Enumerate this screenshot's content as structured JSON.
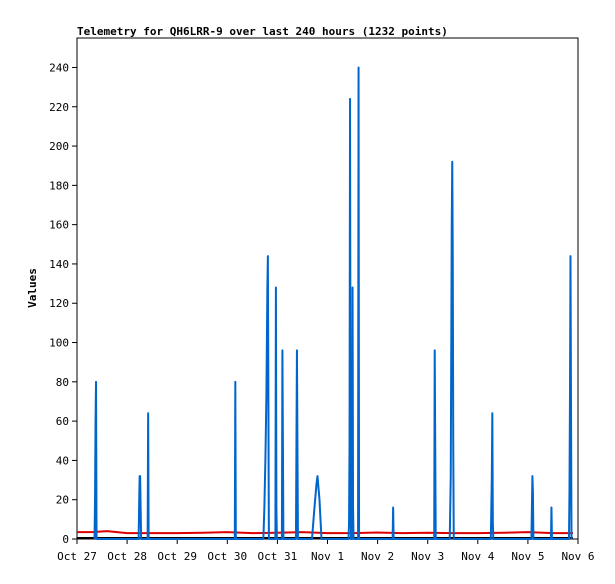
{
  "chart_data": {
    "type": "line",
    "title": "Telemetry for QH6LRR-9 over last 240 hours (1232 points)",
    "xlabel": "",
    "ylabel": "Values",
    "xlim": [
      "Oct 27",
      "Nov 6"
    ],
    "ylim": [
      0,
      255
    ],
    "x_ticks": [
      "Oct 27",
      "Oct 28",
      "Oct 29",
      "Oct 30",
      "Oct 31",
      "Nov 1",
      "Nov 2",
      "Nov 3",
      "Nov 4",
      "Nov 5",
      "Nov 6"
    ],
    "y_ticks": [
      0,
      20,
      40,
      60,
      80,
      100,
      120,
      140,
      160,
      180,
      200,
      220,
      240
    ],
    "grid": false,
    "legend": "none",
    "x_unit": "days since Oct 27 00:00",
    "series": [
      {
        "color": "#0066cc",
        "points": [
          [
            0.35,
            0
          ],
          [
            0.36,
            20
          ],
          [
            0.37,
            60
          ],
          [
            0.38,
            80
          ],
          [
            0.39,
            0
          ],
          [
            1.23,
            0
          ],
          [
            1.24,
            16
          ],
          [
            1.25,
            32
          ],
          [
            1.26,
            32
          ],
          [
            1.27,
            16
          ],
          [
            1.28,
            0
          ],
          [
            1.41,
            0
          ],
          [
            1.42,
            64
          ],
          [
            1.43,
            0
          ],
          [
            3.15,
            0
          ],
          [
            3.16,
            80
          ],
          [
            3.17,
            0
          ],
          [
            3.72,
            0
          ],
          [
            3.74,
            16
          ],
          [
            3.76,
            40
          ],
          [
            3.78,
            72
          ],
          [
            3.79,
            100
          ],
          [
            3.8,
            128
          ],
          [
            3.81,
            144
          ],
          [
            3.82,
            72
          ],
          [
            3.83,
            0
          ],
          [
            3.96,
            0
          ],
          [
            3.97,
            128
          ],
          [
            3.98,
            16
          ],
          [
            3.99,
            0
          ],
          [
            4.09,
            0
          ],
          [
            4.1,
            96
          ],
          [
            4.11,
            48
          ],
          [
            4.12,
            0
          ],
          [
            4.37,
            0
          ],
          [
            4.38,
            48
          ],
          [
            4.39,
            96
          ],
          [
            4.4,
            48
          ],
          [
            4.41,
            0
          ],
          [
            4.69,
            0
          ],
          [
            4.74,
            16
          ],
          [
            4.78,
            28
          ],
          [
            4.8,
            32
          ],
          [
            4.84,
            20
          ],
          [
            4.88,
            0
          ],
          [
            5.42,
            0
          ],
          [
            5.43,
            8
          ],
          [
            5.44,
            48
          ],
          [
            5.45,
            224
          ],
          [
            5.46,
            40
          ],
          [
            5.47,
            0
          ],
          [
            5.49,
            0
          ],
          [
            5.5,
            128
          ],
          [
            5.51,
            16
          ],
          [
            5.52,
            0
          ],
          [
            5.61,
            0
          ],
          [
            5.62,
            240
          ],
          [
            5.63,
            0
          ],
          [
            6.3,
            0
          ],
          [
            6.31,
            16
          ],
          [
            6.32,
            0
          ],
          [
            7.13,
            0
          ],
          [
            7.14,
            96
          ],
          [
            7.15,
            48
          ],
          [
            7.16,
            0
          ],
          [
            7.44,
            0
          ],
          [
            7.45,
            16
          ],
          [
            7.46,
            32
          ],
          [
            7.47,
            96
          ],
          [
            7.48,
            160
          ],
          [
            7.49,
            192
          ],
          [
            7.5,
            144
          ],
          [
            7.51,
            48
          ],
          [
            7.52,
            0
          ],
          [
            8.26,
            0
          ],
          [
            8.27,
            16
          ],
          [
            8.28,
            32
          ],
          [
            8.29,
            64
          ],
          [
            8.3,
            8
          ],
          [
            8.31,
            0
          ],
          [
            9.07,
            0
          ],
          [
            9.08,
            16
          ],
          [
            9.09,
            32
          ],
          [
            9.1,
            24
          ],
          [
            9.11,
            0
          ],
          [
            9.46,
            0
          ],
          [
            9.47,
            16
          ],
          [
            9.48,
            0
          ],
          [
            9.82,
            0
          ],
          [
            9.83,
            24
          ],
          [
            9.84,
            72
          ],
          [
            9.85,
            144
          ],
          [
            9.86,
            72
          ],
          [
            9.87,
            0
          ]
        ]
      },
      {
        "color": "#dd0000",
        "points": [
          [
            0,
            3.5
          ],
          [
            0.3,
            3.5
          ],
          [
            0.6,
            4
          ],
          [
            1.0,
            3
          ],
          [
            1.5,
            3
          ],
          [
            2.0,
            3
          ],
          [
            2.5,
            3.2
          ],
          [
            3.0,
            3.5
          ],
          [
            3.5,
            3
          ],
          [
            4.0,
            3.2
          ],
          [
            4.5,
            3.5
          ],
          [
            5.0,
            3
          ],
          [
            5.5,
            3
          ],
          [
            6.0,
            3.3
          ],
          [
            6.5,
            3
          ],
          [
            7.0,
            3.2
          ],
          [
            7.5,
            3
          ],
          [
            8.0,
            3
          ],
          [
            8.5,
            3.2
          ],
          [
            9.0,
            3.5
          ],
          [
            9.5,
            3
          ],
          [
            9.9,
            3
          ]
        ]
      },
      {
        "color": "#000000",
        "points": [
          [
            0,
            0.5
          ],
          [
            9.9,
            0.5
          ]
        ]
      }
    ]
  }
}
